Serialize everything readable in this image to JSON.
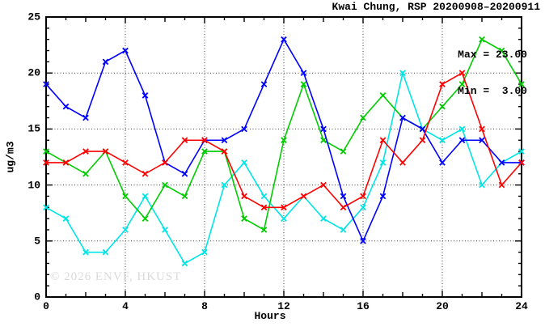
{
  "title": "Kwai Chung, RSP 20200908–20200911",
  "legend": {
    "max_label": "Max = 23.00",
    "min_label": "Min =  3.00"
  },
  "watermark": "© 2026 ENVF, HKUST",
  "colors": {
    "background": "#ffffff",
    "frame": "#000000",
    "grid": "#3c3c3c",
    "blue": "#0000ff",
    "red": "#ff0000",
    "green": "#00cc00",
    "cyan": "#00e5e5",
    "watermark": "#dadada"
  },
  "chart_data": {
    "type": "line",
    "title": "Kwai Chung, RSP 20200908–20200911",
    "xlabel": "Hours",
    "ylabel": "ug/m3",
    "xlim": [
      0,
      24
    ],
    "ylim": [
      0,
      25
    ],
    "x_ticks": [
      0,
      4,
      8,
      12,
      16,
      20,
      24
    ],
    "y_ticks": [
      0,
      5,
      10,
      15,
      20,
      25
    ],
    "grid": true,
    "legend_position": "top-right",
    "legend_stats": {
      "max": 23.0,
      "min": 3.0
    },
    "x": [
      0,
      1,
      2,
      3,
      4,
      5,
      6,
      7,
      8,
      9,
      10,
      11,
      12,
      13,
      14,
      15,
      16,
      17,
      18,
      19,
      20,
      21,
      22,
      23,
      24
    ],
    "series": [
      {
        "name": "line-cyan",
        "color": "#00e5e5",
        "values": [
          8,
          7,
          4,
          4,
          6,
          9,
          6,
          3,
          4,
          10,
          12,
          9,
          7,
          9,
          7,
          6,
          8,
          12,
          20,
          15,
          14,
          15,
          10,
          12,
          13
        ]
      },
      {
        "name": "line-green",
        "color": "#00cc00",
        "values": [
          13,
          12,
          11,
          13,
          9,
          7,
          10,
          9,
          13,
          13,
          7,
          6,
          14,
          19,
          14,
          13,
          16,
          18,
          16,
          15,
          17,
          19,
          23,
          22,
          19
        ]
      },
      {
        "name": "line-blue",
        "color": "#0000ff",
        "values": [
          19,
          17,
          16,
          21,
          22,
          18,
          12,
          11,
          14,
          14,
          15,
          19,
          23,
          20,
          15,
          9,
          5,
          9,
          16,
          15,
          12,
          14,
          14,
          12,
          12
        ]
      },
      {
        "name": "line-red",
        "color": "#ff0000",
        "values": [
          12,
          12,
          13,
          13,
          12,
          11,
          12,
          14,
          14,
          13,
          9,
          8,
          8,
          9,
          10,
          8,
          9,
          14,
          12,
          14,
          19,
          20,
          15,
          10,
          12
        ]
      }
    ]
  }
}
